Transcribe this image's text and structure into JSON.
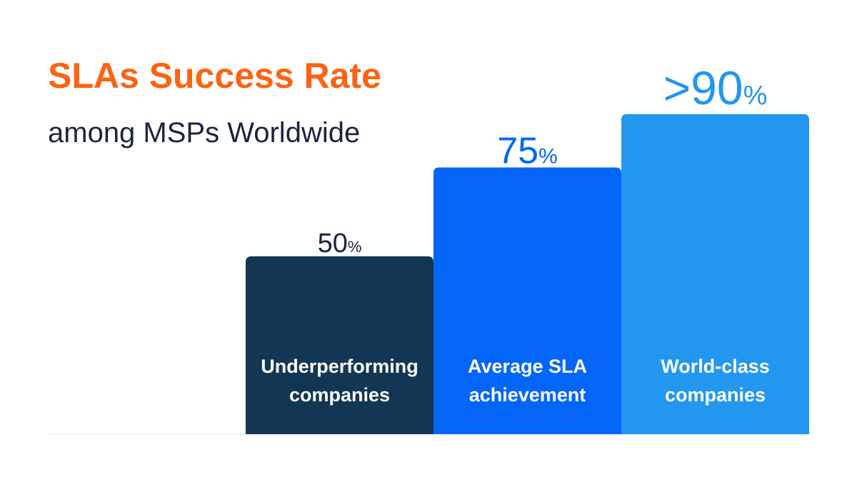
{
  "chart_data": {
    "type": "bar",
    "title": "SLAs Success Rate",
    "subtitle": "among MSPs Worldwide",
    "xlabel": "",
    "ylabel": "",
    "ylim": [
      0,
      100
    ],
    "grid": false,
    "categories": [
      [
        "Underperforming",
        "companies"
      ],
      [
        "Average SLA",
        "achievement"
      ],
      [
        "World-class",
        "companies"
      ]
    ],
    "values": [
      50,
      75,
      90
    ],
    "value_labels": [
      {
        "prefix": "",
        "number": "50",
        "unit": "%"
      },
      {
        "prefix": "",
        "number": "75",
        "unit": "%"
      },
      {
        "prefix": ">",
        "number": "90",
        "unit": "%"
      }
    ],
    "bar_colors": [
      "#133654",
      "#0466f8",
      "#2397ef"
    ],
    "label_colors": [
      "#1b2440",
      "#0466f8",
      "#2397ef"
    ]
  },
  "colors": {
    "title": "#fc6312",
    "subtitle": "#1b2440",
    "baseline": "#ececec"
  }
}
